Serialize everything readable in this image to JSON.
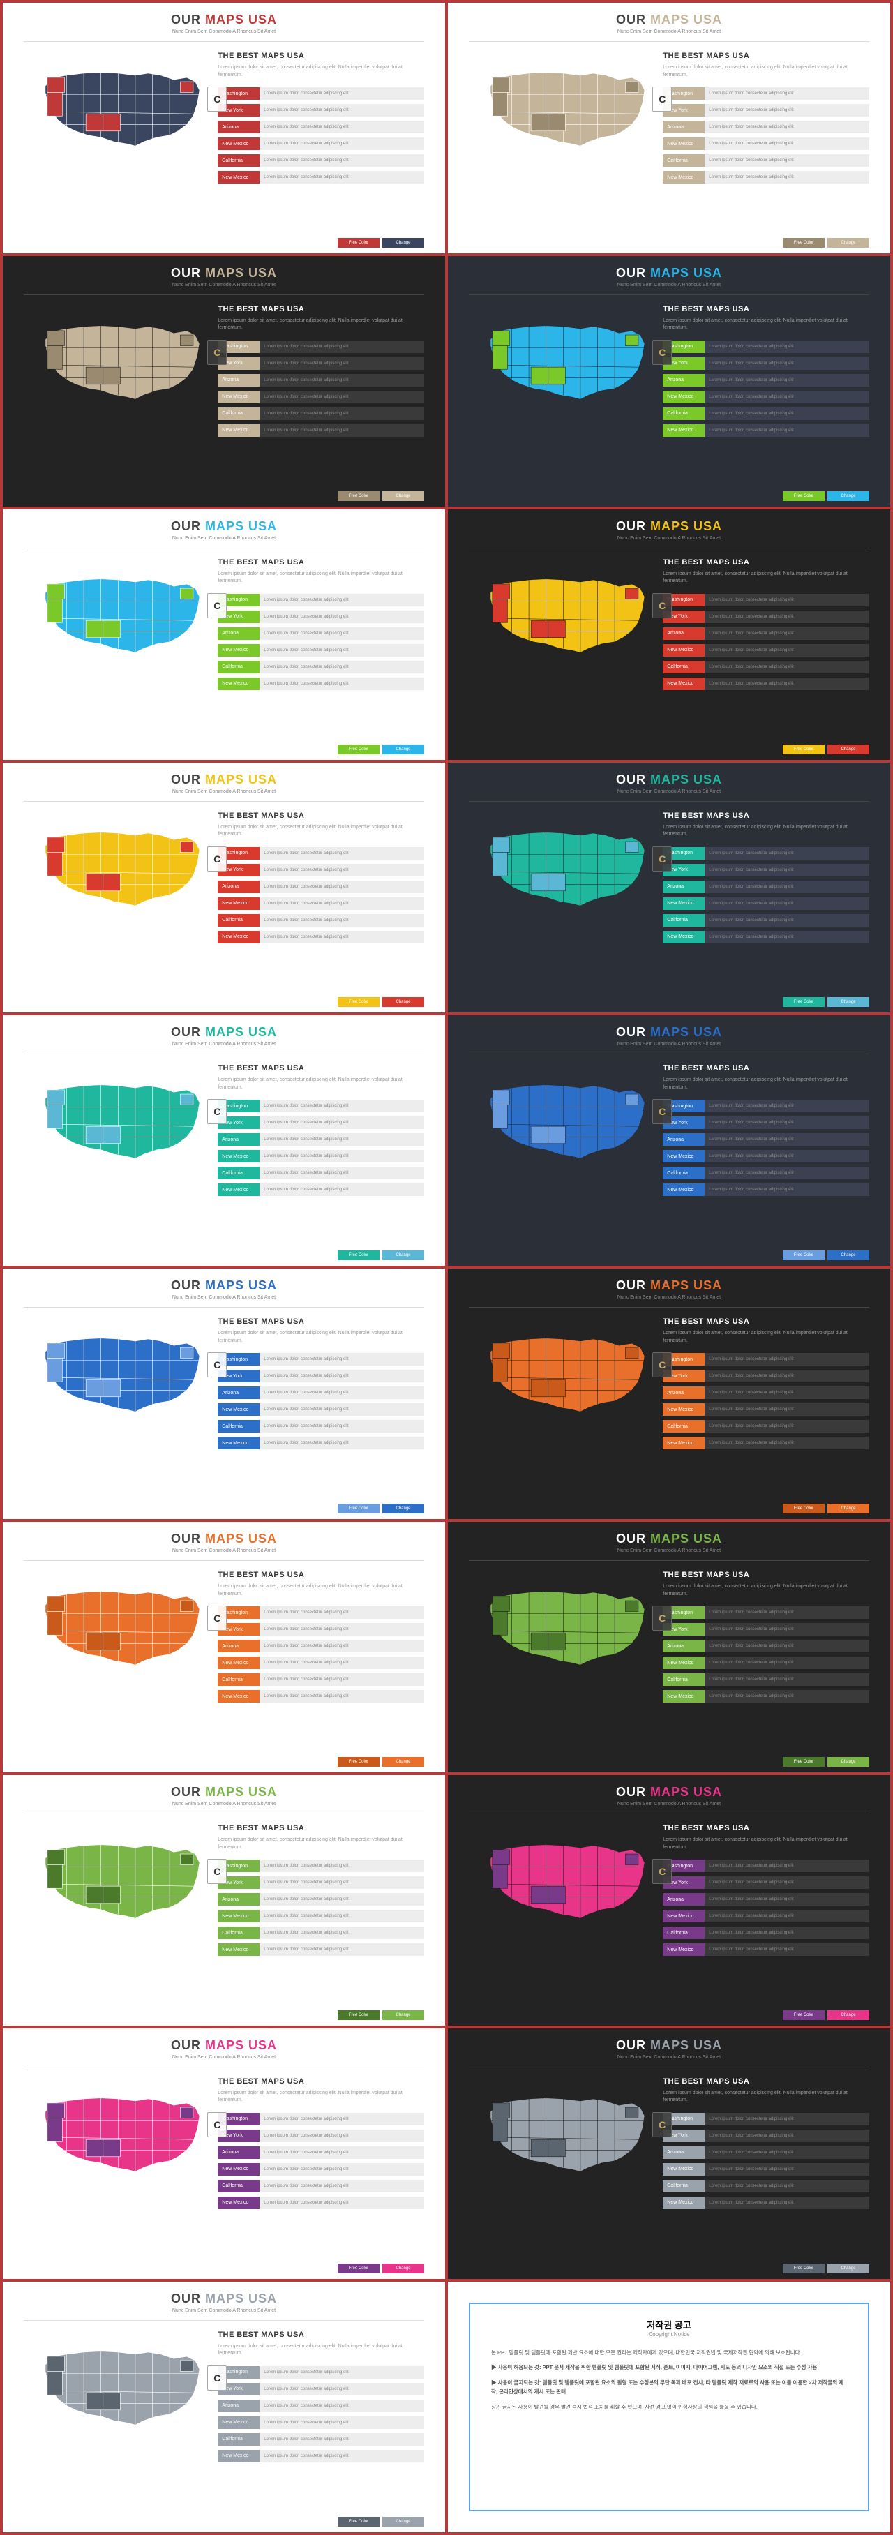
{
  "common": {
    "title_our": "OUR",
    "title_maps": "MAPS USA",
    "subtitle": "Nunc Enim Sem Commodo A Rhoncus Sit Amet",
    "best_title": "THE BEST MAPS USA",
    "best_desc": "Lorem ipsum dolor sit amet, consectetur adipiscing elit. Nulla imperdiet volutpat dui at fermentum.",
    "bar_rest_text": "Lorem ipsum dolor, consectetur adipiscing elit",
    "badge_letter": "C",
    "btn1": "Free Color",
    "btn2": "Change"
  },
  "bar_labels": [
    "Washington",
    "New York",
    "Arizona",
    "New Mexico",
    "California",
    "New Mexico"
  ],
  "slides": [
    {
      "bg": "light",
      "map_fill": "#3a4660",
      "highlight": "#c13838",
      "accent": "#c13838",
      "title_accent": "#c13838",
      "bar_bg": "#ededed",
      "btn_colors": [
        "#c13838",
        "#3a4660"
      ]
    },
    {
      "bg": "light",
      "map_fill": "#c4b59a",
      "highlight": "#9a8a6f",
      "accent": "#c4b59a",
      "title_accent": "#c4b59a",
      "bar_bg": "#ededed",
      "btn_colors": [
        "#9a8a6f",
        "#c4b59a"
      ]
    },
    {
      "bg": "darker",
      "map_fill": "#c4b59a",
      "highlight": "#9a8a6f",
      "accent": "#c4b59a",
      "title_accent": "#c4b59a",
      "bar_bg": "#3a3a3a",
      "btn_colors": [
        "#9a8a6f",
        "#c4b59a"
      ]
    },
    {
      "bg": "dark",
      "map_fill": "#2bb5e8",
      "highlight": "#7bc928",
      "accent": "#7bc928",
      "title_accent": "#2bb5e8",
      "bar_bg": "#3b4150",
      "btn_colors": [
        "#7bc928",
        "#2bb5e8"
      ]
    },
    {
      "bg": "light",
      "map_fill": "#2bb5e8",
      "highlight": "#7bc928",
      "accent": "#7bc928",
      "title_accent": "#2bb5e8",
      "bar_bg": "#ededed",
      "btn_colors": [
        "#7bc928",
        "#2bb5e8"
      ]
    },
    {
      "bg": "darker",
      "map_fill": "#f2c314",
      "highlight": "#d83a2e",
      "accent": "#d83a2e",
      "title_accent": "#f2c314",
      "bar_bg": "#3a3a3a",
      "btn_colors": [
        "#f2c314",
        "#d83a2e"
      ]
    },
    {
      "bg": "light",
      "map_fill": "#f2c314",
      "highlight": "#d83a2e",
      "accent": "#d83a2e",
      "title_accent": "#f2c314",
      "bar_bg": "#ededed",
      "btn_colors": [
        "#f2c314",
        "#d83a2e"
      ]
    },
    {
      "bg": "dark",
      "map_fill": "#1fb89e",
      "highlight": "#5ab8d4",
      "accent": "#1fb89e",
      "title_accent": "#1fb89e",
      "bar_bg": "#3b4150",
      "btn_colors": [
        "#1fb89e",
        "#5ab8d4"
      ]
    },
    {
      "bg": "light",
      "map_fill": "#1fb89e",
      "highlight": "#5ab8d4",
      "accent": "#1fb89e",
      "title_accent": "#1fb89e",
      "bar_bg": "#ededed",
      "btn_colors": [
        "#1fb89e",
        "#5ab8d4"
      ]
    },
    {
      "bg": "dark",
      "map_fill": "#2c6fc9",
      "highlight": "#6a9de0",
      "accent": "#2c6fc9",
      "title_accent": "#2c6fc9",
      "bar_bg": "#3b4150",
      "btn_colors": [
        "#6a9de0",
        "#2c6fc9"
      ]
    },
    {
      "bg": "light",
      "map_fill": "#2c6fc9",
      "highlight": "#6a9de0",
      "accent": "#2c6fc9",
      "title_accent": "#2c6fc9",
      "bar_bg": "#ededed",
      "btn_colors": [
        "#6a9de0",
        "#2c6fc9"
      ]
    },
    {
      "bg": "darker",
      "map_fill": "#e8702a",
      "highlight": "#c95a1a",
      "accent": "#e8702a",
      "title_accent": "#e8702a",
      "bar_bg": "#3a3a3a",
      "btn_colors": [
        "#c95a1a",
        "#e8702a"
      ]
    },
    {
      "bg": "light",
      "map_fill": "#e8702a",
      "highlight": "#c95a1a",
      "accent": "#e8702a",
      "title_accent": "#e8702a",
      "bar_bg": "#ededed",
      "btn_colors": [
        "#c95a1a",
        "#e8702a"
      ]
    },
    {
      "bg": "darker",
      "map_fill": "#7ab548",
      "highlight": "#4a7a2a",
      "accent": "#7ab548",
      "title_accent": "#7ab548",
      "bar_bg": "#3a3a3a",
      "btn_colors": [
        "#4a7a2a",
        "#7ab548"
      ]
    },
    {
      "bg": "light",
      "map_fill": "#7ab548",
      "highlight": "#4a7a2a",
      "accent": "#7ab548",
      "title_accent": "#7ab548",
      "bar_bg": "#ededed",
      "btn_colors": [
        "#4a7a2a",
        "#7ab548"
      ]
    },
    {
      "bg": "darker",
      "map_fill": "#e8358a",
      "highlight": "#7a3a8a",
      "accent": "#7a3a8a",
      "title_accent": "#e8358a",
      "bar_bg": "#3a3a3a",
      "btn_colors": [
        "#7a3a8a",
        "#e8358a"
      ]
    },
    {
      "bg": "light",
      "map_fill": "#e8358a",
      "highlight": "#7a3a8a",
      "accent": "#7a3a8a",
      "title_accent": "#e8358a",
      "bar_bg": "#ededed",
      "btn_colors": [
        "#7a3a8a",
        "#e8358a"
      ]
    },
    {
      "bg": "darker",
      "map_fill": "#9aa2ab",
      "highlight": "#5a6570",
      "accent": "#9aa2ab",
      "title_accent": "#9aa2ab",
      "bar_bg": "#3a3a3a",
      "btn_colors": [
        "#5a6570",
        "#9aa2ab"
      ]
    },
    {
      "bg": "light",
      "map_fill": "#9aa2ab",
      "highlight": "#5a6570",
      "accent": "#9aa2ab",
      "title_accent": "#9aa2ab",
      "bar_bg": "#ededed",
      "btn_colors": [
        "#5a6570",
        "#9aa2ab"
      ]
    }
  ],
  "copyright": {
    "title": "저작권 공고",
    "subtitle": "Copyright Notice",
    "p1": "본 PPT 템플릿 및 템플릿에 포함된 제반 요소에 대한 모든 권리는 제작자에게 있으며, 대한민국 저작권법 및 국제저작권 협약에 의해 보호됩니다.",
    "p2": "사용이 허용되는 것: PPT 문서 제작을 위한 템플릿 및 템플릿에 포함된 서식, 폰트, 이미지, 다이어그램, 지도 등의 디자인 요소의 직접 또는 수정 사용",
    "p3": "사용이 금지되는 것: 템플릿 및 템플릿에 포함된 요소의 원형 또는 수정본의 무단 복제 배포 전시, 타 템플릿 제작 재료로의 사용 또는 이를 이용한 2차 저작물의 제작, 온라인상에서의 게시 또는 판매",
    "p4": "상기 금지된 사용이 발견될 경우 발견 즉시 법적 조치를 취할 수 있으며, 사전 경고 없이 민형사상의 책임을 물을 수 있습니다."
  }
}
